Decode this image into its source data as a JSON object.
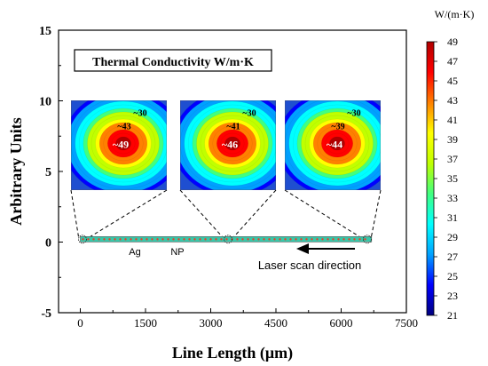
{
  "chart_data": {
    "type": "scatter",
    "xlabel": "Line Length (μm)",
    "ylabel": "Arbitrary Units",
    "xlim": [
      -500,
      7500
    ],
    "ylim": [
      -5,
      15
    ],
    "x_ticks": [
      "0",
      "1500",
      "3000",
      "4500",
      "6000",
      "7500"
    ],
    "y_ticks": [
      "-5",
      "0",
      "5",
      "10",
      "15"
    ],
    "grid": false,
    "box_label": "Thermal Conductivity W/m·K",
    "line": {
      "x_start": 0,
      "x_end": 6700,
      "y": 0.2,
      "labels": [
        "Ag",
        "NP"
      ]
    },
    "laser_label": "Laser scan direction",
    "hotspots": [
      {
        "x": 50,
        "center": "~49",
        "inner": "~43",
        "outer": "~30",
        "center_value": 49
      },
      {
        "x": 3400,
        "center": "~46",
        "inner": "~41",
        "outer": "~30",
        "center_value": 46
      },
      {
        "x": 6600,
        "center": "~44",
        "inner": "~39",
        "outer": "~30",
        "center_value": 44
      }
    ],
    "colorbar": {
      "title": "W/(m·K)",
      "min": 21,
      "max": 49,
      "ticks": [
        "49",
        "47",
        "45",
        "43",
        "41",
        "39",
        "37",
        "35",
        "33",
        "31",
        "29",
        "27",
        "25",
        "23",
        "21"
      ]
    }
  },
  "colors": {
    "colormap": [
      "#00007f",
      "#0000ff",
      "#00a0ff",
      "#00ffff",
      "#40ff80",
      "#c0ff00",
      "#ffff00",
      "#ff8000",
      "#ff0000",
      "#b00000"
    ],
    "map_background": "#1f4fd0",
    "line_fill": "#37c7a9",
    "line_dots": "#e8402a",
    "text": "#000000"
  }
}
